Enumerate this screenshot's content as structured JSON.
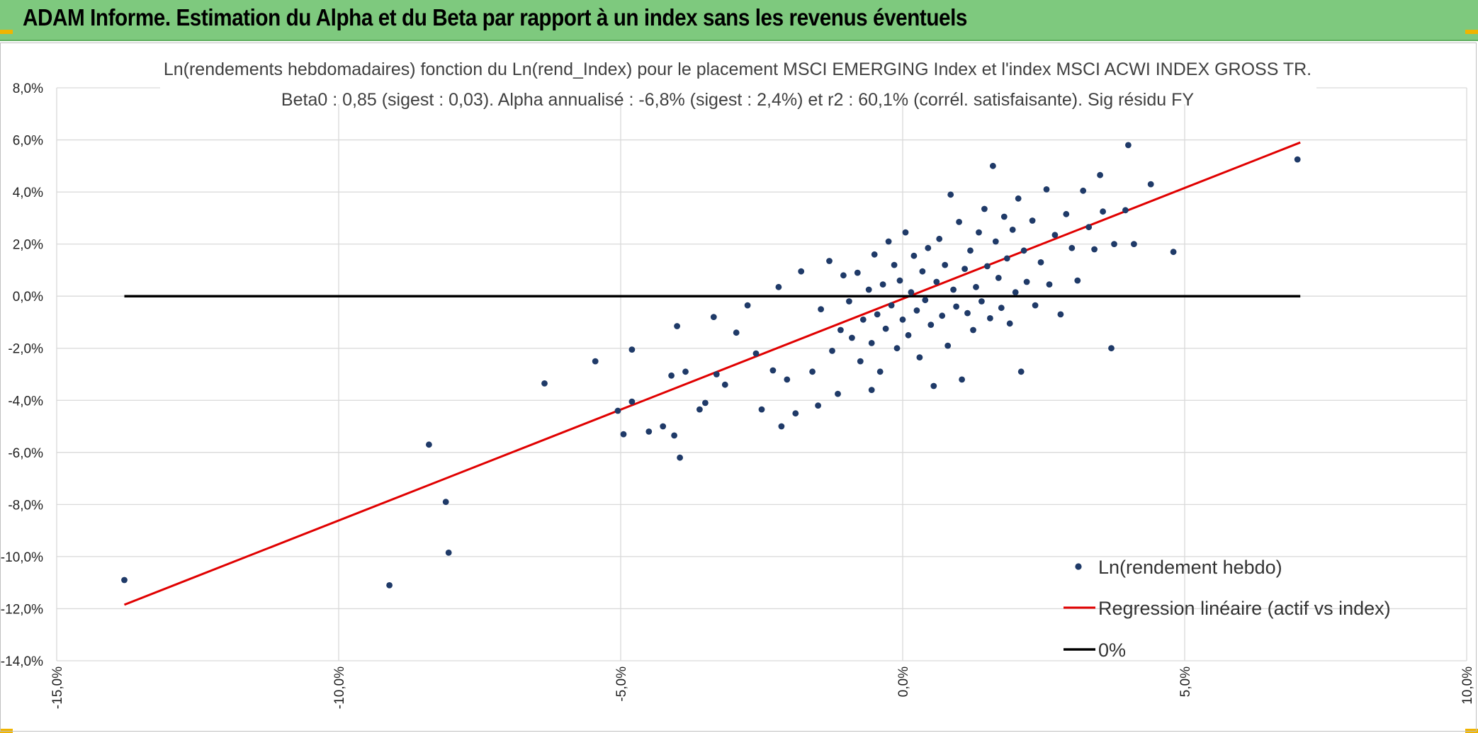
{
  "header": {
    "title": "ADAM Informe. Estimation du Alpha et du Beta par rapport à un index sans les revenus éventuels",
    "background": "#7ec97e"
  },
  "chart_data": {
    "type": "scatter",
    "title": "Ln(rendements hebdomadaires) fonction du Ln(rend_Index) pour le placement MSCI EMERGING Index et l'index MSCI ACWI INDEX GROSS TR.",
    "subtitle": "Beta0 : 0,85 (sigest : 0,03). Alpha annualisé : -6,8% (sigest : 2,4%) et r2 : 60,1% (corrél. satisfaisante). Sig résidu FY",
    "xlim": [
      -15,
      10
    ],
    "ylim": [
      -14,
      8
    ],
    "x_ticks": [
      "-15,0%",
      "-10,0%",
      "-5,0%",
      "0,0%",
      "5,0%",
      "10,0%"
    ],
    "y_ticks": [
      "8,0%",
      "6,0%",
      "4,0%",
      "2,0%",
      "0,0%",
      "-2,0%",
      "-4,0%",
      "-6,0%",
      "-8,0%",
      "-10,0%",
      "-12,0%",
      "-14,0%"
    ],
    "grid": true,
    "legend_position": "bottom-right",
    "series": [
      {
        "name": "Ln(rendement hebdo)",
        "kind": "scatter",
        "color": "#1f3a68",
        "points": [
          [
            -13.8,
            -10.9
          ],
          [
            -9.1,
            -11.1
          ],
          [
            -8.4,
            -5.7
          ],
          [
            -8.1,
            -7.9
          ],
          [
            -8.05,
            -9.85
          ],
          [
            -6.35,
            -3.35
          ],
          [
            -5.45,
            -2.5
          ],
          [
            -5.05,
            -4.4
          ],
          [
            -4.95,
            -5.3
          ],
          [
            -4.8,
            -4.05
          ],
          [
            -4.8,
            -2.05
          ],
          [
            -4.5,
            -5.2
          ],
          [
            -4.25,
            -5.0
          ],
          [
            -4.1,
            -3.05
          ],
          [
            -4.05,
            -5.35
          ],
          [
            -4.0,
            -1.15
          ],
          [
            -3.95,
            -6.2
          ],
          [
            -3.85,
            -2.9
          ],
          [
            -3.6,
            -4.35
          ],
          [
            -3.5,
            -4.1
          ],
          [
            -3.35,
            -0.8
          ],
          [
            -3.3,
            -3.0
          ],
          [
            -3.15,
            -3.4
          ],
          [
            -2.95,
            -1.4
          ],
          [
            -2.75,
            -0.35
          ],
          [
            -2.6,
            -2.2
          ],
          [
            -2.5,
            -4.35
          ],
          [
            -2.3,
            -2.85
          ],
          [
            -2.2,
            0.35
          ],
          [
            -2.15,
            -5.0
          ],
          [
            -2.05,
            -3.2
          ],
          [
            -1.9,
            -4.5
          ],
          [
            -1.8,
            0.95
          ],
          [
            -1.6,
            -2.9
          ],
          [
            -1.5,
            -4.2
          ],
          [
            -1.45,
            -0.5
          ],
          [
            -1.3,
            1.35
          ],
          [
            -1.25,
            -2.1
          ],
          [
            -1.15,
            -3.75
          ],
          [
            -1.1,
            -1.3
          ],
          [
            -1.05,
            0.8
          ],
          [
            -0.95,
            -0.2
          ],
          [
            -0.9,
            -1.6
          ],
          [
            -0.8,
            0.9
          ],
          [
            -0.75,
            -2.5
          ],
          [
            -0.7,
            -0.9
          ],
          [
            -0.6,
            0.25
          ],
          [
            -0.55,
            -1.8
          ],
          [
            -0.55,
            -3.6
          ],
          [
            -0.5,
            1.6
          ],
          [
            -0.45,
            -0.7
          ],
          [
            -0.4,
            -2.9
          ],
          [
            -0.35,
            0.45
          ],
          [
            -0.3,
            -1.25
          ],
          [
            -0.25,
            2.1
          ],
          [
            -0.2,
            -0.35
          ],
          [
            -0.15,
            1.2
          ],
          [
            -0.1,
            -2.0
          ],
          [
            -0.05,
            0.6
          ],
          [
            0.0,
            -0.9
          ],
          [
            0.05,
            2.45
          ],
          [
            0.1,
            -1.5
          ],
          [
            0.15,
            0.15
          ],
          [
            0.2,
            1.55
          ],
          [
            0.25,
            -0.55
          ],
          [
            0.3,
            -2.35
          ],
          [
            0.35,
            0.95
          ],
          [
            0.4,
            -0.15
          ],
          [
            0.45,
            1.85
          ],
          [
            0.5,
            -1.1
          ],
          [
            0.55,
            -3.45
          ],
          [
            0.6,
            0.55
          ],
          [
            0.65,
            2.2
          ],
          [
            0.7,
            -0.75
          ],
          [
            0.75,
            1.2
          ],
          [
            0.8,
            -1.9
          ],
          [
            0.85,
            3.9
          ],
          [
            0.9,
            0.25
          ],
          [
            0.95,
            -0.4
          ],
          [
            1.0,
            2.85
          ],
          [
            1.05,
            -3.2
          ],
          [
            1.1,
            1.05
          ],
          [
            1.15,
            -0.65
          ],
          [
            1.2,
            1.75
          ],
          [
            1.25,
            -1.3
          ],
          [
            1.3,
            0.35
          ],
          [
            1.35,
            2.45
          ],
          [
            1.4,
            -0.2
          ],
          [
            1.45,
            3.35
          ],
          [
            1.5,
            1.15
          ],
          [
            1.55,
            -0.85
          ],
          [
            1.6,
            5.0
          ],
          [
            1.65,
            2.1
          ],
          [
            1.7,
            0.7
          ],
          [
            1.75,
            -0.45
          ],
          [
            1.8,
            3.05
          ],
          [
            1.85,
            1.45
          ],
          [
            1.9,
            -1.05
          ],
          [
            1.95,
            2.55
          ],
          [
            2.0,
            0.15
          ],
          [
            2.05,
            3.75
          ],
          [
            2.1,
            -2.9
          ],
          [
            2.15,
            1.75
          ],
          [
            2.2,
            0.55
          ],
          [
            2.3,
            2.9
          ],
          [
            2.35,
            -0.35
          ],
          [
            2.45,
            1.3
          ],
          [
            2.55,
            4.1
          ],
          [
            2.6,
            0.45
          ],
          [
            2.7,
            2.35
          ],
          [
            2.8,
            -0.7
          ],
          [
            2.9,
            3.15
          ],
          [
            3.0,
            1.85
          ],
          [
            3.1,
            0.6
          ],
          [
            3.2,
            4.05
          ],
          [
            3.3,
            2.65
          ],
          [
            3.4,
            1.8
          ],
          [
            3.5,
            4.65
          ],
          [
            3.55,
            3.25
          ],
          [
            3.7,
            -2.0
          ],
          [
            3.75,
            2.0
          ],
          [
            3.95,
            3.3
          ],
          [
            4.0,
            5.8
          ],
          [
            4.1,
            2.0
          ],
          [
            4.4,
            4.3
          ],
          [
            4.8,
            1.7
          ],
          [
            7.0,
            5.25
          ]
        ]
      },
      {
        "name": "Regression linéaire (actif vs index)",
        "kind": "line",
        "color": "#e00000",
        "x": [
          -13.8,
          7.05
        ],
        "y": [
          -11.85,
          5.9
        ]
      },
      {
        "name": "0%",
        "kind": "line",
        "color": "#000000",
        "x": [
          -13.8,
          7.05
        ],
        "y": [
          0.0,
          0.0
        ]
      }
    ]
  }
}
